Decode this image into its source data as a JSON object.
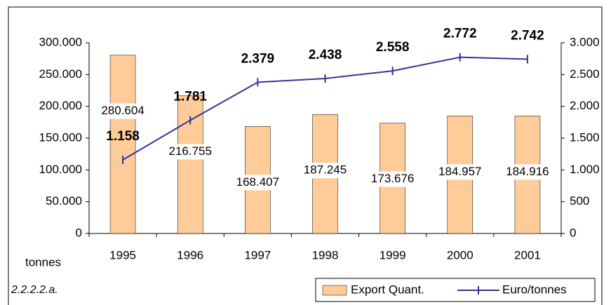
{
  "chart_data": {
    "type": "bar-line",
    "categories": [
      "1995",
      "1996",
      "1997",
      "1998",
      "1999",
      "2000",
      "2001"
    ],
    "series": [
      {
        "name": "Export Quant.",
        "color": "#ffcc99",
        "values": [
          280604,
          216755,
          168407,
          187245,
          173676,
          184957,
          184916
        ],
        "value_labels": [
          "280.604",
          "216.755",
          "168.407",
          "187.245",
          "173.676",
          "184.957",
          "184.916"
        ]
      },
      {
        "name": "Euro/tonnes",
        "color": "#333399",
        "axis": "y2",
        "values": [
          1158,
          1781,
          2379,
          2438,
          2558,
          2772,
          2742
        ],
        "value_labels": [
          "1.158",
          "1.781",
          "2.379",
          "2.438",
          "2.558",
          "2.772",
          "2.742"
        ]
      }
    ],
    "ylim": [
      0,
      300000
    ],
    "yticks": [
      0,
      {
        "value": 50000,
        "label": "50.000"
      },
      {
        "value": 100000,
        "label": "100.000"
      },
      {
        "value": 150000,
        "label": "150.000"
      },
      {
        "value": 200000,
        "label": "200.000"
      },
      {
        "value": 250000,
        "label": "250.000"
      },
      {
        "value": 300000,
        "label": "300.000"
      }
    ],
    "y2lim": [
      0,
      3000
    ],
    "y2ticks": [
      0,
      500,
      {
        "value": 1000,
        "label": "1.000"
      },
      {
        "value": 1500,
        "label": "1.500"
      },
      {
        "value": 2000,
        "label": "2.000"
      },
      {
        "value": 2500,
        "label": "2.500"
      },
      {
        "value": 3000,
        "label": "3.000"
      }
    ],
    "annotations": [
      "tonnes",
      "2.2.2.2.a."
    ],
    "legend": "bottom-right"
  }
}
